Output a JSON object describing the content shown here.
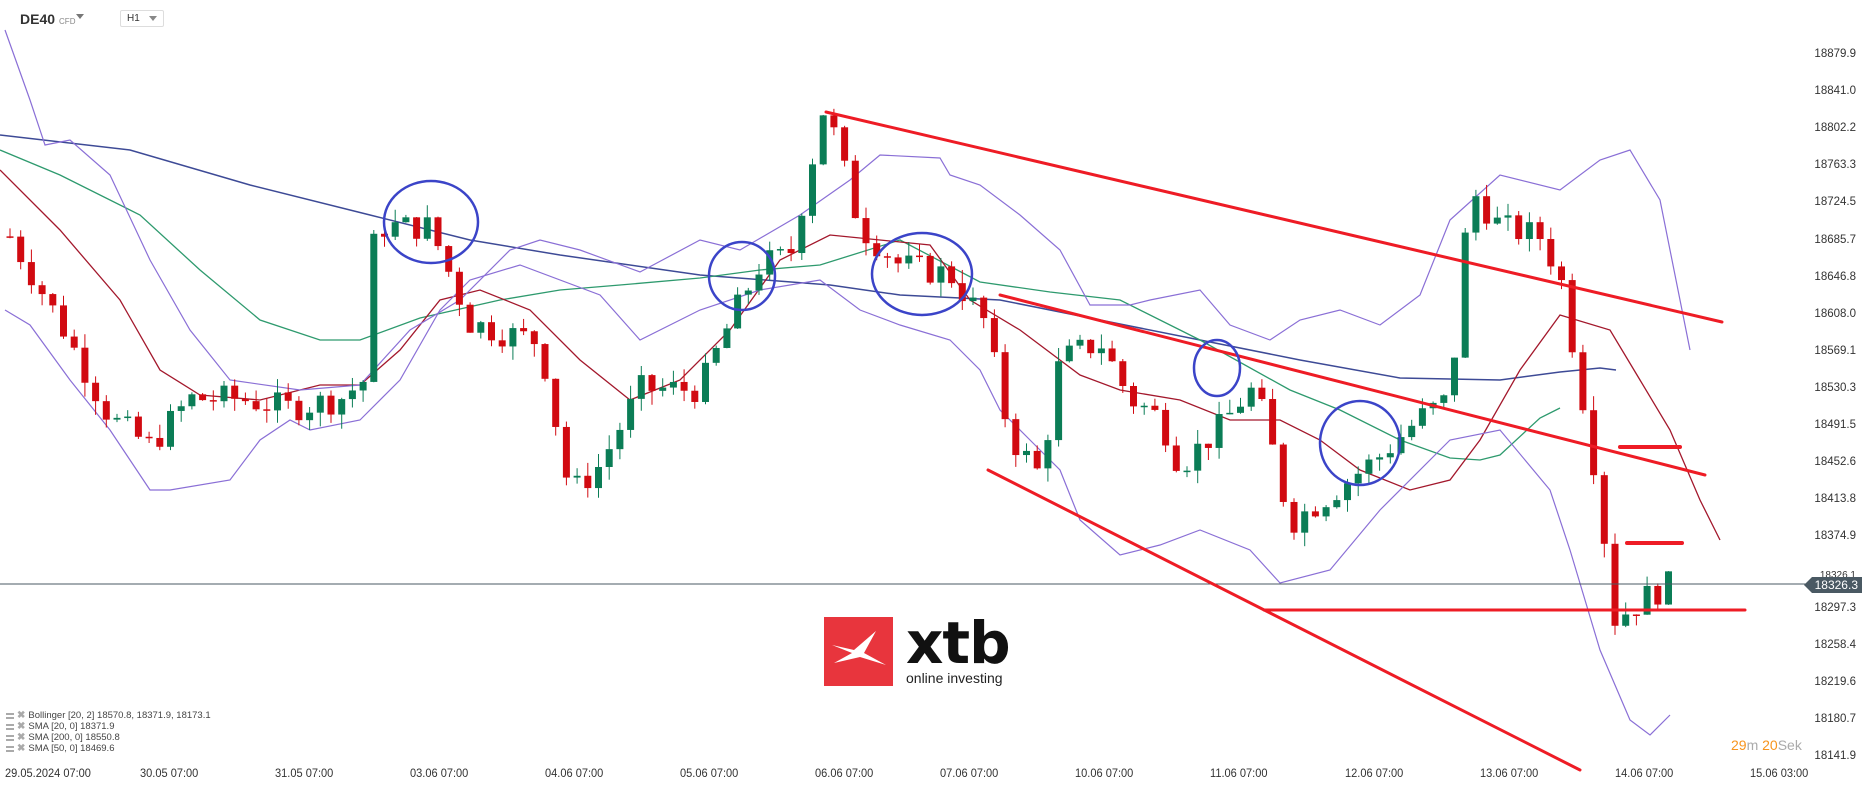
{
  "header": {
    "symbol": "DE40",
    "symbol_type": "CFD",
    "timeframe": "H1"
  },
  "y_axis": {
    "labels": [
      "18879.9",
      "18841.0",
      "18802.2",
      "18763.3",
      "18724.5",
      "18685.7",
      "18646.8",
      "18608.0",
      "18569.1",
      "18530.3",
      "18491.5",
      "18452.6",
      "18413.8",
      "18374.9",
      "18326.1",
      "18297.3",
      "18258.4",
      "18219.6",
      "18180.7",
      "18141.9"
    ],
    "current_price": "18326.3"
  },
  "x_axis": {
    "labels": [
      "29.05.2024  07:00",
      "30.05  07:00",
      "31.05  07:00",
      "03.06  07:00",
      "04.06  07:00",
      "05.06  07:00",
      "06.06  07:00",
      "07.06  07:00",
      "10.06  07:00",
      "11.06  07:00",
      "12.06  07:00",
      "13.06  07:00",
      "14.06  07:00",
      "15.06  03:00"
    ]
  },
  "legend": [
    {
      "label": "Bollinger  [20, 2] 18570.8,  18371.9,  18173.1"
    },
    {
      "label": "SMA [20, 0] 18371.9"
    },
    {
      "label": "SMA [200, 0] 18550.8"
    },
    {
      "label": "SMA [50, 0] 18469.6"
    }
  ],
  "countdown": {
    "minutes": "29",
    "min_unit": "m",
    "seconds": "20",
    "sec_unit": "Sek"
  },
  "logo": {
    "word": "xtb",
    "tagline": "online investing"
  },
  "colors": {
    "bull": "#0b7d56",
    "bear": "#d10a11",
    "bollinger": "#8a6fd6",
    "sma20": "#a3182c",
    "sma200": "#3d4a96",
    "sma50": "#2e9a6e",
    "trendline": "#ee1c25",
    "circle": "#3b44c8",
    "price_line": "#4a5963"
  },
  "chart_data": {
    "type": "candlestick",
    "title": "DE40 CFD H1",
    "xlabel": "",
    "ylabel": "",
    "ylim": [
      18141.9,
      18879.9
    ],
    "categories": [
      "29.05",
      "30.05",
      "31.05",
      "03.06",
      "04.06",
      "05.06",
      "06.06",
      "07.06",
      "10.06",
      "11.06",
      "12.06",
      "13.06",
      "14.06"
    ],
    "daily_close_approx": [
      18500,
      18480,
      18510,
      18700,
      18580,
      18620,
      18660,
      18480,
      18430,
      18400,
      18650,
      18300,
      18326.3
    ],
    "indicators": {
      "bollinger_20_2": {
        "upper": 18570.8,
        "middle": 18371.9,
        "lower": 18173.1
      },
      "sma_20": 18371.9,
      "sma_200": 18550.8,
      "sma_50": 18469.6
    },
    "annotations": {
      "horizontal_support": 18297.3,
      "short_levels": [
        18474,
        18374.9
      ],
      "descending_channel": true,
      "current_price": 18326.3
    },
    "legend_position": "bottom-left",
    "grid": false
  }
}
